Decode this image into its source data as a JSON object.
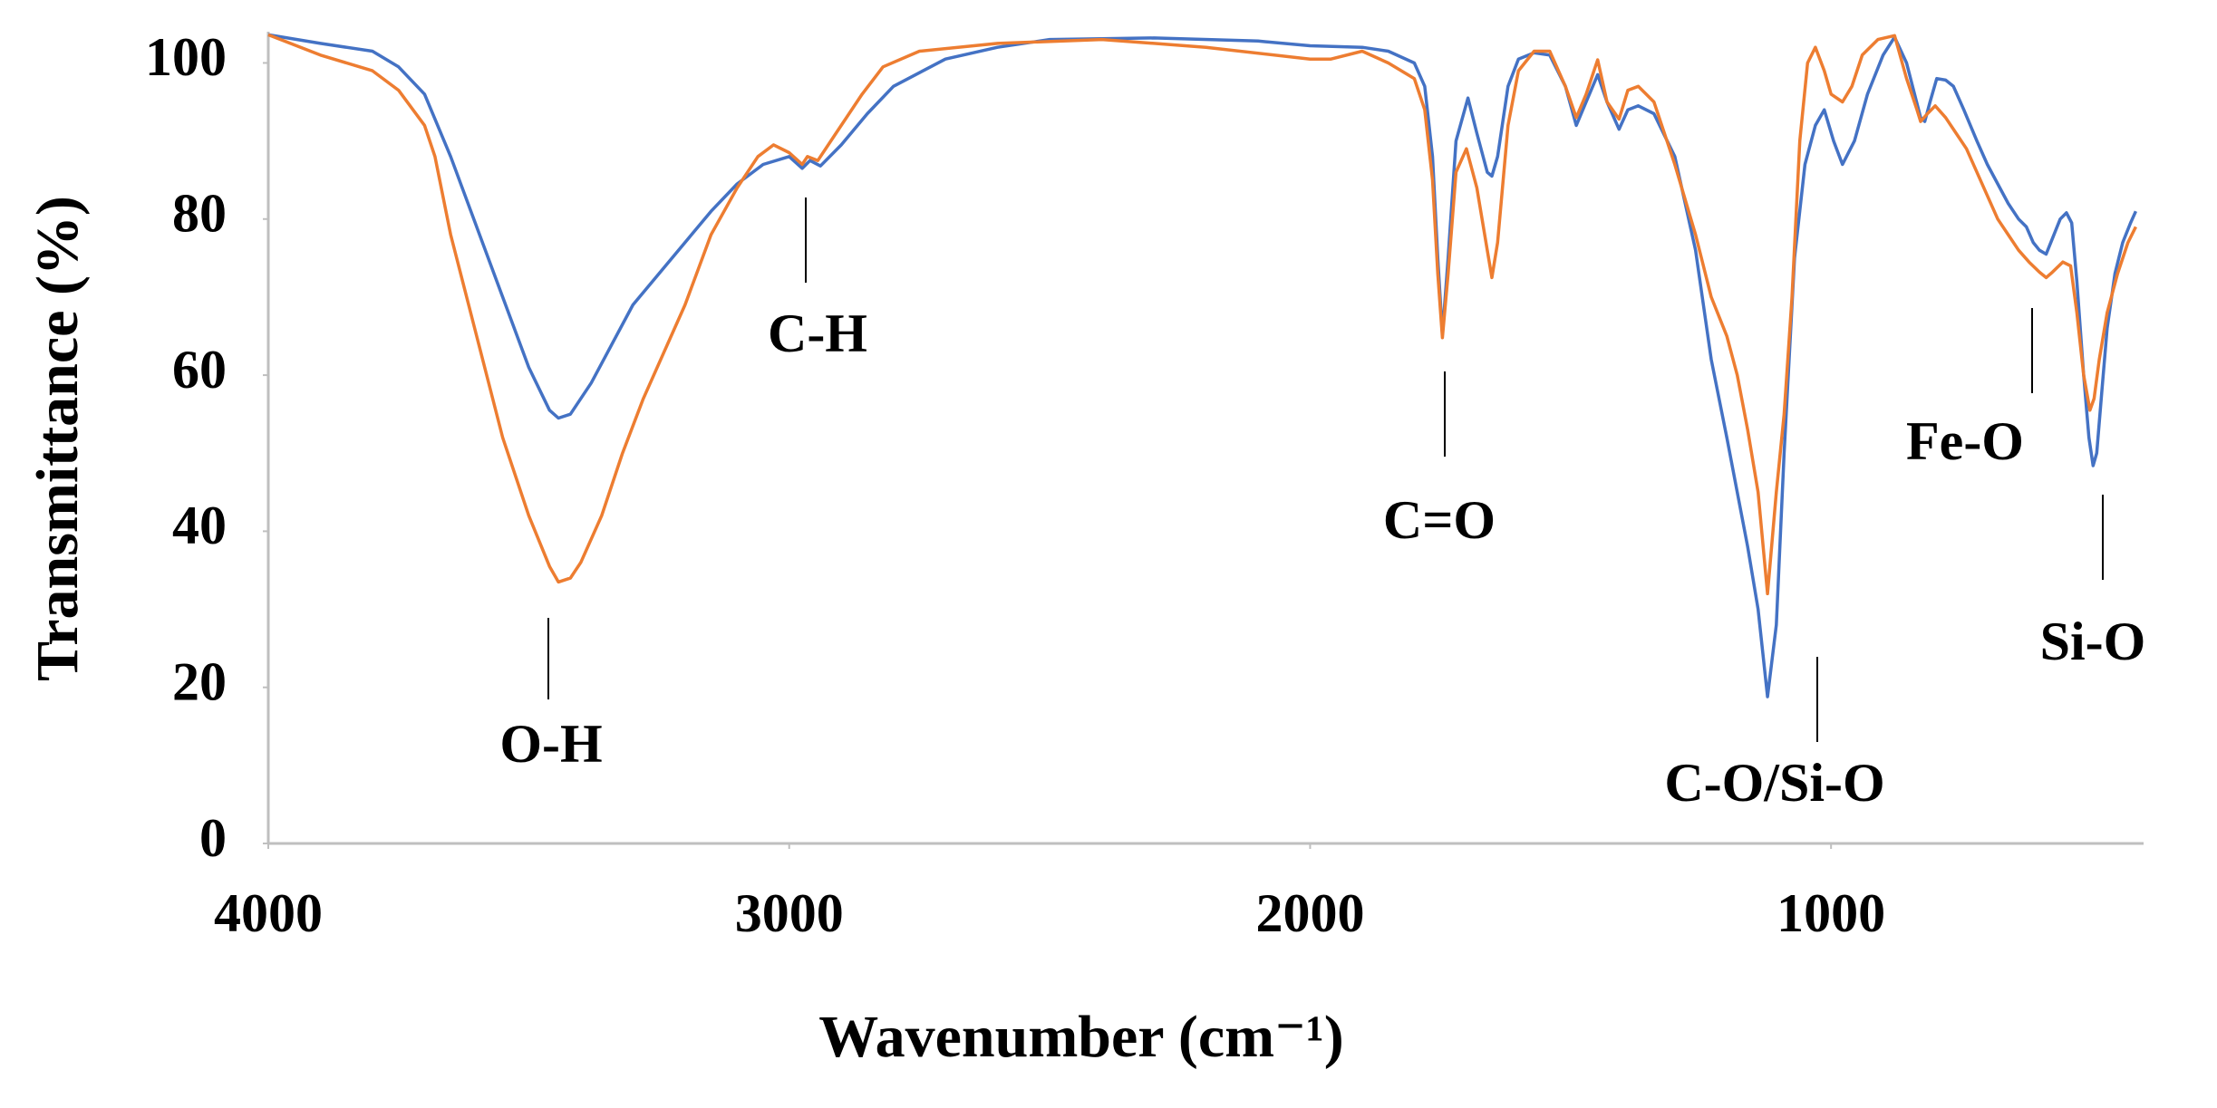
{
  "chart_data": {
    "type": "line",
    "x_label": "Wavenumber (cm⁻¹)",
    "y_label": "Transmittance (%)",
    "xlim": [
      4000,
      400
    ],
    "xticks": [
      4000,
      3000,
      2000,
      1000
    ],
    "ylim": [
      0,
      104
    ],
    "yticks": [
      0,
      20,
      40,
      60,
      80,
      100
    ],
    "annotations": [
      "O-H",
      "C-H",
      "C=O",
      "C-O/Si-O",
      "Fe-O",
      "Si-O"
    ],
    "series": [
      {
        "color": "#4472c4",
        "x": [
          4000,
          3900,
          3800,
          3750,
          3700,
          3650,
          3600,
          3550,
          3500,
          3460,
          3443,
          3420,
          3380,
          3340,
          3300,
          3250,
          3200,
          3150,
          3100,
          3050,
          3000,
          2975,
          2960,
          2940,
          2900,
          2850,
          2800,
          2700,
          2600,
          2500,
          2300,
          2100,
          2000,
          1900,
          1850,
          1800,
          1780,
          1765,
          1755,
          1746,
          1735,
          1720,
          1697,
          1680,
          1660,
          1651,
          1640,
          1620,
          1600,
          1570,
          1540,
          1510,
          1489,
          1470,
          1448,
          1430,
          1407,
          1390,
          1370,
          1340,
          1300,
          1260,
          1230,
          1200,
          1180,
          1160,
          1140,
          1122,
          1105,
          1090,
          1070,
          1050,
          1030,
          1013,
          995,
          978,
          955,
          930,
          900,
          878,
          855,
          828,
          820,
          810,
          797,
          780,
          765,
          745,
          720,
          700,
          680,
          660,
          640,
          625,
          612,
          600,
          587,
          575,
          560,
          548,
          538,
          528,
          515,
          505,
          497,
          490,
          480,
          470,
          455,
          440,
          425,
          415
        ],
        "values": [
          103.6,
          102.5,
          101.5,
          99.5,
          96,
          88,
          79,
          70,
          61,
          55.5,
          54.5,
          55,
          59,
          64,
          69,
          73,
          77,
          81,
          84.5,
          87,
          88,
          86.5,
          87.5,
          86.8,
          89.5,
          93.5,
          97,
          100.5,
          102,
          103,
          103.2,
          102.8,
          102.2,
          102,
          101.5,
          100,
          97,
          88,
          75,
          65.2,
          75,
          90,
          95.5,
          91,
          86,
          85.5,
          88,
          97,
          100.5,
          101.3,
          101,
          97,
          92,
          95,
          98.5,
          95,
          91.5,
          94,
          94.5,
          93.5,
          88,
          76,
          62,
          52,
          45,
          38,
          30,
          18.8,
          28,
          50,
          75,
          87,
          92,
          94,
          90,
          87,
          90,
          96,
          101,
          103.3,
          100,
          93,
          92.5,
          95,
          98,
          97.8,
          97,
          94,
          90,
          87,
          84.5,
          82,
          80,
          79,
          77,
          76,
          75.5,
          77.5,
          80,
          80.8,
          79.5,
          72,
          60,
          52,
          48.4,
          50,
          58,
          66,
          73,
          77,
          79.5,
          81
        ]
      },
      {
        "color": "#ed7d31",
        "x": [
          4000,
          3900,
          3800,
          3750,
          3700,
          3680,
          3650,
          3600,
          3550,
          3500,
          3460,
          3443,
          3420,
          3400,
          3360,
          3320,
          3280,
          3240,
          3200,
          3150,
          3100,
          3060,
          3030,
          3000,
          2975,
          2965,
          2945,
          2910,
          2860,
          2820,
          2750,
          2600,
          2400,
          2200,
          2000,
          1960,
          1900,
          1850,
          1800,
          1780,
          1765,
          1755,
          1746,
          1735,
          1720,
          1700,
          1680,
          1660,
          1651,
          1640,
          1620,
          1600,
          1570,
          1540,
          1510,
          1489,
          1470,
          1448,
          1430,
          1407,
          1390,
          1370,
          1340,
          1300,
          1260,
          1230,
          1200,
          1180,
          1160,
          1140,
          1122,
          1105,
          1090,
          1075,
          1060,
          1045,
          1030,
          1013,
          1000,
          978,
          960,
          940,
          910,
          878,
          855,
          835,
          828,
          815,
          800,
          780,
          760,
          740,
          720,
          700,
          680,
          660,
          640,
          620,
          600,
          587,
          575,
          555,
          540,
          528,
          515,
          503,
          495,
          485,
          470,
          450,
          430,
          415
        ],
        "values": [
          103.6,
          101,
          99,
          96.5,
          92,
          88,
          78,
          65,
          52,
          42,
          35.5,
          33.5,
          34,
          36,
          42,
          50,
          57,
          63,
          69,
          78,
          84,
          88,
          89.5,
          88.5,
          87,
          88,
          87.5,
          91,
          96,
          99.5,
          101.5,
          102.5,
          103,
          102,
          100.5,
          100.5,
          101.5,
          100,
          98,
          94,
          85,
          73,
          64.8,
          73,
          86,
          89,
          84,
          76,
          72.5,
          77,
          92,
          99,
          101.5,
          101.5,
          97,
          93,
          96,
          100.4,
          95,
          92.8,
          96.5,
          97,
          95,
          87,
          78,
          70,
          65,
          60,
          53,
          45,
          32,
          45,
          55,
          70,
          90,
          100,
          102,
          99,
          96,
          95,
          97,
          101,
          103,
          103.5,
          98,
          94,
          92.5,
          93.5,
          94.5,
          93,
          91,
          89,
          86,
          83,
          80,
          78,
          76,
          74.5,
          73.2,
          72.5,
          73.2,
          74.5,
          74,
          68,
          60,
          55.5,
          57,
          62,
          68,
          73,
          77,
          79
        ]
      }
    ]
  }
}
